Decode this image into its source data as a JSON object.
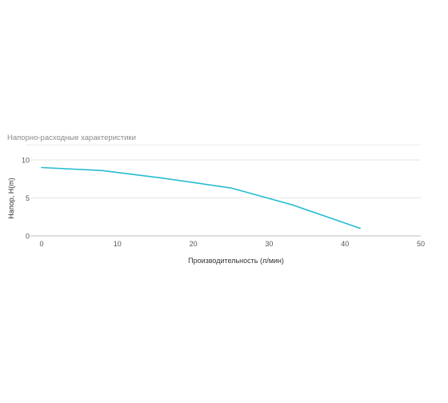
{
  "chart_data": {
    "type": "line",
    "title": "Напорно-расходные характеристики",
    "xlabel": "Производительность (л/мин)",
    "ylabel": "Напор, H(m)",
    "xlim": [
      0,
      50
    ],
    "ylim": [
      0,
      10
    ],
    "x_ticks": [
      "0",
      "10",
      "20",
      "30",
      "40",
      "50"
    ],
    "y_ticks": [
      "0",
      "5",
      "10"
    ],
    "grid": true,
    "legend": "none",
    "series": [
      {
        "color": "#26bcd0",
        "x": [
          0,
          8,
          16,
          25,
          33,
          42
        ],
        "y": [
          9.0,
          8.6,
          7.6,
          6.3,
          4.1,
          1.0
        ]
      }
    ]
  }
}
